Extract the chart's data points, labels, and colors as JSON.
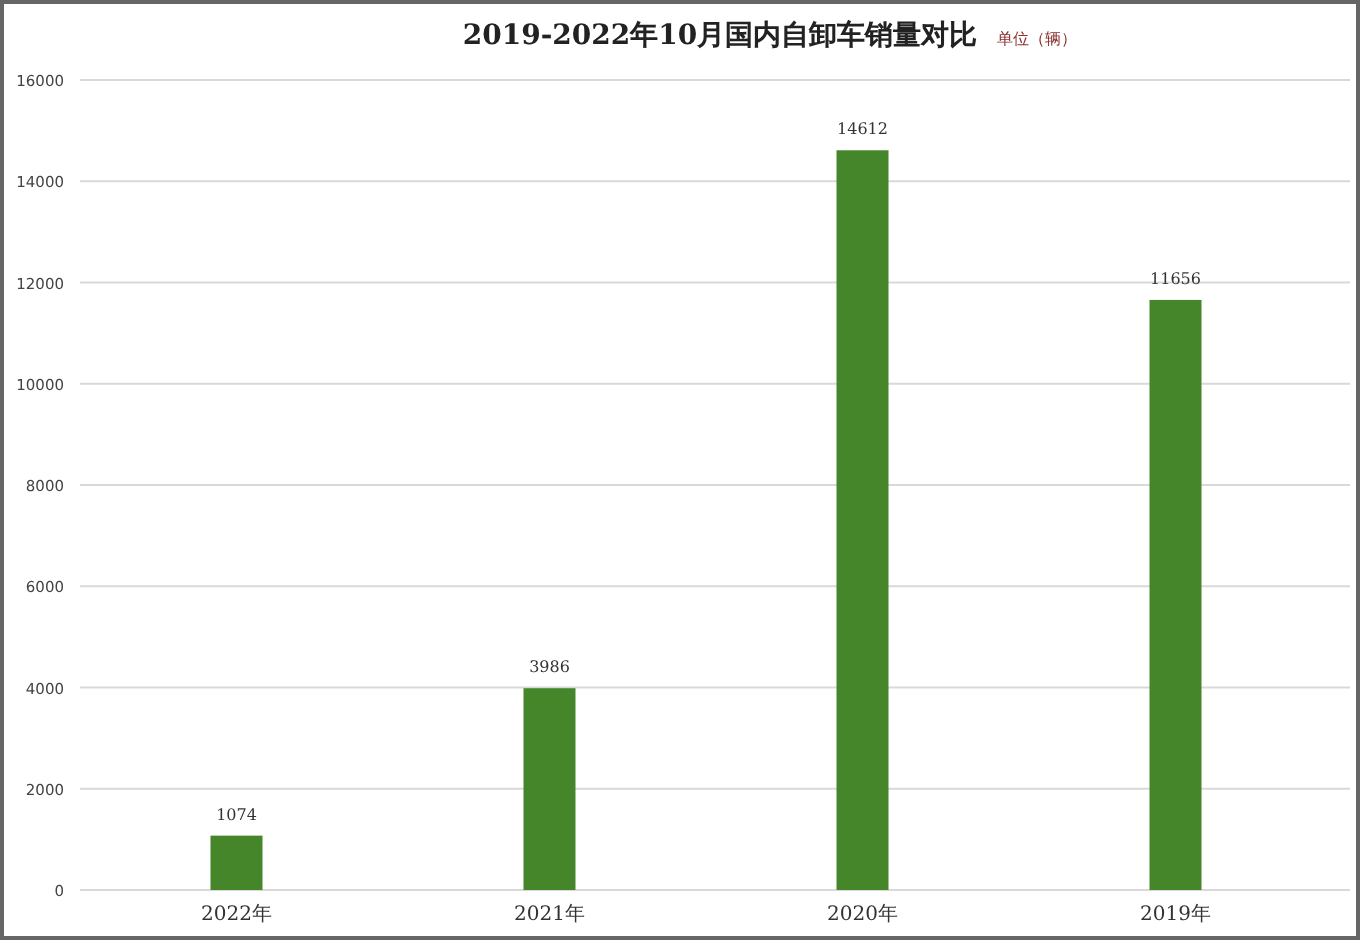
{
  "chart_data": {
    "type": "bar",
    "title": "2019-2022年10月国内自卸车销量对比",
    "subtitle": "单位（辆）",
    "categories": [
      "2022年",
      "2021年",
      "2020年",
      "2019年"
    ],
    "values": [
      1074,
      3986,
      14612,
      11656
    ],
    "color": "#46862a",
    "ylim": [
      0,
      16000
    ],
    "yticks": [
      0,
      2000,
      4000,
      6000,
      8000,
      10000,
      12000,
      14000,
      16000
    ],
    "grid": "y",
    "data_labels": true
  }
}
